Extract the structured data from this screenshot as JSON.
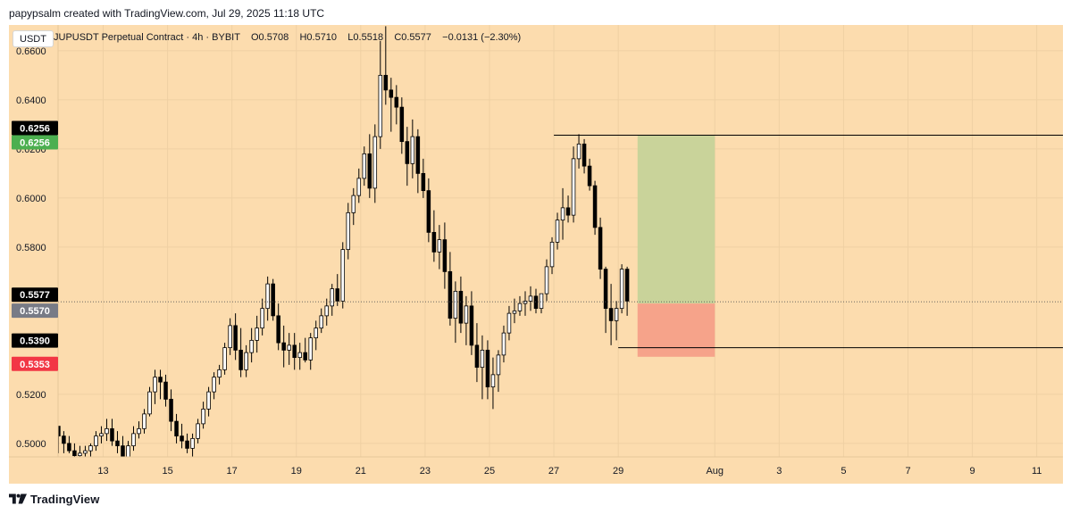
{
  "attribution": "papypsalm created with TradingView.com, Jul 29, 2025 11:18 UTC",
  "brand": "TradingView",
  "currency_badge": "USDT",
  "legend": {
    "symbol": "JUPUSDT Perpetual Contract",
    "interval": "4h",
    "exchange": "BYBIT",
    "open": "O0.5708",
    "high": "H0.5710",
    "low": "L0.5518",
    "close": "C0.5577",
    "change": "−0.0131 (−2.30%)"
  },
  "colors": {
    "background": "#fcdcae",
    "bull_body": "#ffffff",
    "bear_body": "#000000",
    "wick": "#000000",
    "profit_zone": "#c9d39a",
    "loss_zone": "#f6a38a",
    "label_dark": "#000000",
    "label_green": "#4caf50",
    "label_gray": "#787b86",
    "label_red": "#f23645"
  },
  "chart_data": {
    "type": "candlestick",
    "y_ticks": [
      "0.6600",
      "0.6400",
      "0.6200",
      "0.6000",
      "0.5800",
      "0.5200",
      "0.5000"
    ],
    "y_ticks_values": [
      0.66,
      0.64,
      0.62,
      0.6,
      0.58,
      0.52,
      0.5
    ],
    "ylim": [
      0.4945,
      0.6705
    ],
    "x_ticks": [
      "13",
      "15",
      "17",
      "19",
      "21",
      "23",
      "25",
      "27",
      "29",
      "Aug",
      "3",
      "5",
      "7",
      "9",
      "11"
    ],
    "x_ticks_day_index": [
      13,
      15,
      17,
      19,
      21,
      23,
      25,
      27,
      29,
      32,
      34,
      36,
      38,
      40,
      42
    ],
    "x_start_day_index": 11.61,
    "candles_per_day": 6,
    "price_labels": [
      {
        "text": "0.6256",
        "value": 0.6256,
        "color": "label_dark"
      },
      {
        "text": "0.6256",
        "value": 0.6256,
        "color": "label_green"
      },
      {
        "text": "0.5577",
        "value": 0.5577,
        "color": "label_dark"
      },
      {
        "text": "0.5570",
        "value": 0.557,
        "color": "label_gray"
      },
      {
        "text": "0.5390",
        "value": 0.539,
        "color": "label_dark"
      },
      {
        "text": "0.5353",
        "value": 0.5353,
        "color": "label_red"
      }
    ],
    "current_price": 0.5577,
    "position_tool": {
      "entry": 0.557,
      "target": 0.6256,
      "stop": 0.5353,
      "start_day_index": 29.6,
      "end_day_index": 32.0
    },
    "horizontal_lines": [
      {
        "value": 0.6256,
        "start_day_index": 27.0
      },
      {
        "value": 0.539,
        "start_day_index": 29.0
      }
    ],
    "ohlc": [
      [
        0.507,
        0.507,
        0.496,
        0.503
      ],
      [
        0.503,
        0.505,
        0.496,
        0.5
      ],
      [
        0.5,
        0.503,
        0.496,
        0.497
      ],
      [
        0.497,
        0.5,
        0.493,
        0.495
      ],
      [
        0.495,
        0.499,
        0.493,
        0.496
      ],
      [
        0.496,
        0.499,
        0.494,
        0.497
      ],
      [
        0.497,
        0.5,
        0.494,
        0.499
      ],
      [
        0.499,
        0.505,
        0.497,
        0.503
      ],
      [
        0.503,
        0.507,
        0.5,
        0.504
      ],
      [
        0.504,
        0.51,
        0.501,
        0.506
      ],
      [
        0.506,
        0.51,
        0.499,
        0.501
      ],
      [
        0.501,
        0.505,
        0.496,
        0.499
      ],
      [
        0.499,
        0.503,
        0.492,
        0.494
      ],
      [
        0.494,
        0.501,
        0.493,
        0.499
      ],
      [
        0.499,
        0.507,
        0.497,
        0.504
      ],
      [
        0.504,
        0.509,
        0.502,
        0.506
      ],
      [
        0.506,
        0.514,
        0.504,
        0.512
      ],
      [
        0.512,
        0.523,
        0.511,
        0.521
      ],
      [
        0.521,
        0.53,
        0.516,
        0.527
      ],
      [
        0.527,
        0.53,
        0.518,
        0.525
      ],
      [
        0.525,
        0.528,
        0.515,
        0.518
      ],
      [
        0.518,
        0.522,
        0.505,
        0.509
      ],
      [
        0.509,
        0.512,
        0.5,
        0.503
      ],
      [
        0.503,
        0.508,
        0.498,
        0.501
      ],
      [
        0.501,
        0.504,
        0.496,
        0.498
      ],
      [
        0.498,
        0.504,
        0.494,
        0.502
      ],
      [
        0.502,
        0.51,
        0.5,
        0.508
      ],
      [
        0.508,
        0.517,
        0.506,
        0.514
      ],
      [
        0.514,
        0.523,
        0.511,
        0.521
      ],
      [
        0.521,
        0.529,
        0.518,
        0.527
      ],
      [
        0.527,
        0.532,
        0.524,
        0.53
      ],
      [
        0.53,
        0.541,
        0.528,
        0.539
      ],
      [
        0.539,
        0.551,
        0.536,
        0.548
      ],
      [
        0.548,
        0.553,
        0.534,
        0.538
      ],
      [
        0.538,
        0.547,
        0.527,
        0.53
      ],
      [
        0.53,
        0.54,
        0.527,
        0.537
      ],
      [
        0.537,
        0.547,
        0.533,
        0.542
      ],
      [
        0.542,
        0.552,
        0.537,
        0.547
      ],
      [
        0.547,
        0.559,
        0.544,
        0.555
      ],
      [
        0.555,
        0.568,
        0.55,
        0.565
      ],
      [
        0.565,
        0.567,
        0.55,
        0.552
      ],
      [
        0.552,
        0.557,
        0.538,
        0.541
      ],
      [
        0.541,
        0.548,
        0.531,
        0.538
      ],
      [
        0.538,
        0.545,
        0.532,
        0.54
      ],
      [
        0.54,
        0.545,
        0.53,
        0.535
      ],
      [
        0.535,
        0.541,
        0.53,
        0.537
      ],
      [
        0.537,
        0.543,
        0.533,
        0.534
      ],
      [
        0.534,
        0.545,
        0.53,
        0.543
      ],
      [
        0.543,
        0.55,
        0.538,
        0.547
      ],
      [
        0.547,
        0.555,
        0.545,
        0.552
      ],
      [
        0.552,
        0.559,
        0.548,
        0.556
      ],
      [
        0.556,
        0.565,
        0.552,
        0.563
      ],
      [
        0.563,
        0.569,
        0.556,
        0.558
      ],
      [
        0.558,
        0.582,
        0.555,
        0.579
      ],
      [
        0.579,
        0.598,
        0.575,
        0.594
      ],
      [
        0.594,
        0.604,
        0.589,
        0.601
      ],
      [
        0.601,
        0.612,
        0.598,
        0.608
      ],
      [
        0.608,
        0.621,
        0.605,
        0.618
      ],
      [
        0.618,
        0.626,
        0.6,
        0.604
      ],
      [
        0.604,
        0.63,
        0.598,
        0.625
      ],
      [
        0.625,
        0.664,
        0.62,
        0.65
      ],
      [
        0.65,
        0.67,
        0.638,
        0.644
      ],
      [
        0.644,
        0.649,
        0.627,
        0.641
      ],
      [
        0.641,
        0.646,
        0.63,
        0.637
      ],
      [
        0.637,
        0.641,
        0.618,
        0.623
      ],
      [
        0.623,
        0.629,
        0.605,
        0.614
      ],
      [
        0.614,
        0.632,
        0.608,
        0.625
      ],
      [
        0.625,
        0.628,
        0.602,
        0.61
      ],
      [
        0.61,
        0.616,
        0.6,
        0.603
      ],
      [
        0.603,
        0.608,
        0.582,
        0.586
      ],
      [
        0.586,
        0.595,
        0.574,
        0.578
      ],
      [
        0.578,
        0.589,
        0.571,
        0.583
      ],
      [
        0.583,
        0.59,
        0.563,
        0.57
      ],
      [
        0.57,
        0.578,
        0.548,
        0.551
      ],
      [
        0.551,
        0.566,
        0.541,
        0.562
      ],
      [
        0.562,
        0.568,
        0.545,
        0.549
      ],
      [
        0.549,
        0.56,
        0.54,
        0.556
      ],
      [
        0.556,
        0.562,
        0.536,
        0.54
      ],
      [
        0.54,
        0.549,
        0.525,
        0.531
      ],
      [
        0.531,
        0.544,
        0.518,
        0.538
      ],
      [
        0.538,
        0.542,
        0.518,
        0.523
      ],
      [
        0.523,
        0.535,
        0.514,
        0.528
      ],
      [
        0.528,
        0.538,
        0.521,
        0.536
      ],
      [
        0.536,
        0.548,
        0.533,
        0.545
      ],
      [
        0.545,
        0.556,
        0.542,
        0.553
      ],
      [
        0.553,
        0.559,
        0.549,
        0.554
      ],
      [
        0.554,
        0.56,
        0.552,
        0.557
      ],
      [
        0.557,
        0.562,
        0.552,
        0.558
      ],
      [
        0.558,
        0.564,
        0.554,
        0.56
      ],
      [
        0.56,
        0.563,
        0.553,
        0.555
      ],
      [
        0.555,
        0.561,
        0.553,
        0.561
      ],
      [
        0.561,
        0.575,
        0.558,
        0.572
      ],
      [
        0.572,
        0.584,
        0.569,
        0.582
      ],
      [
        0.582,
        0.594,
        0.579,
        0.591
      ],
      [
        0.591,
        0.604,
        0.583,
        0.596
      ],
      [
        0.596,
        0.601,
        0.59,
        0.593
      ],
      [
        0.593,
        0.621,
        0.59,
        0.616
      ],
      [
        0.616,
        0.626,
        0.612,
        0.622
      ],
      [
        0.622,
        0.624,
        0.61,
        0.613
      ],
      [
        0.613,
        0.616,
        0.603,
        0.605
      ],
      [
        0.605,
        0.607,
        0.585,
        0.588
      ],
      [
        0.588,
        0.592,
        0.567,
        0.571
      ],
      [
        0.571,
        0.572,
        0.545,
        0.555
      ],
      [
        0.555,
        0.565,
        0.54,
        0.55
      ],
      [
        0.55,
        0.558,
        0.542,
        0.555
      ],
      [
        0.555,
        0.573,
        0.553,
        0.571
      ],
      [
        0.571,
        0.572,
        0.552,
        0.558
      ]
    ]
  }
}
